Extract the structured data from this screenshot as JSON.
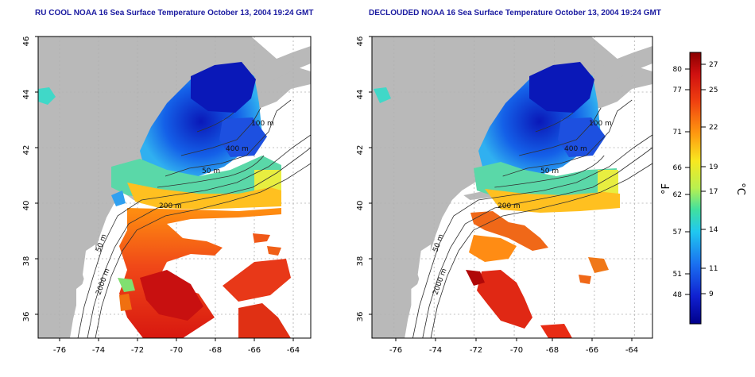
{
  "panels": [
    {
      "title": "RU COOL NOAA 16 Sea Surface Temperature October 13, 2004 19:24 GMT",
      "labels": {
        "m100": "100 m",
        "m400": "400 m",
        "m50": "50 m",
        "m200": "200 m",
        "m50b": "50 m",
        "m2000": "2000 m"
      }
    },
    {
      "title": "DECLOUDED NOAA 16 Sea Surface Temperature October 13, 2004 19:24 GMT",
      "labels": {
        "m100": "100 m",
        "m400": "400 m",
        "m50": "50 m",
        "m200": "200 m",
        "m50b": "50 m",
        "m2000": "2000 m"
      }
    }
  ],
  "axes": {
    "lat_ticks": [
      "46",
      "44",
      "42",
      "40",
      "38",
      "36"
    ],
    "lon_ticks": [
      "-76",
      "-74",
      "-72",
      "-70",
      "-68",
      "-66",
      "-64"
    ]
  },
  "colorbar": {
    "f_label": "°F",
    "c_label": "°C",
    "f_ticks": [
      "80",
      "77",
      "71",
      "66",
      "62",
      "57",
      "51",
      "48"
    ],
    "c_ticks": [
      "27",
      "25",
      "22",
      "19",
      "17",
      "14",
      "11",
      "9"
    ]
  },
  "colors": {
    "land": "#b9b9b9",
    "title": "#1a1aa0",
    "cold": "#0a1fb0",
    "warm": "#e02010"
  }
}
